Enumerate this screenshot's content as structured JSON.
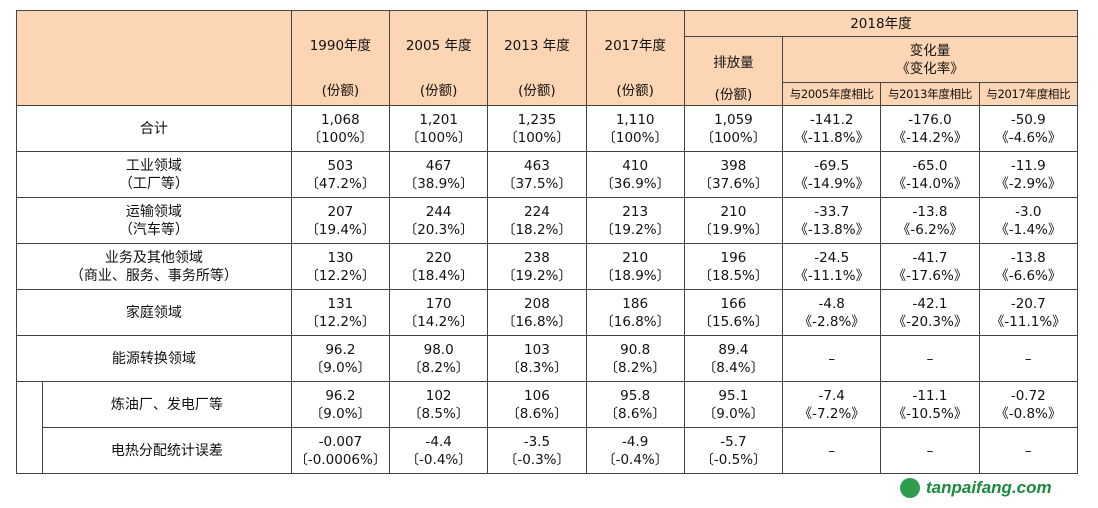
{
  "header": {
    "year_1990": "1990年度",
    "year_2005": "2005 年度",
    "year_2013": "2013 年度",
    "year_2017": "2017年度",
    "unit": "(份额)",
    "year_2018": "2018年度",
    "emissions": "排放量",
    "change_line1": "变化量",
    "change_line2": "《变化率》",
    "vs_2005": "与2005年度相比",
    "vs_2013": "与2013年度相比",
    "vs_2017": "与2017年度相比"
  },
  "rows": [
    {
      "label1": "合计",
      "label2": "",
      "v1990": "1,068",
      "p1990": "〔100%〕",
      "v2005": "1,201",
      "p2005": "〔100%〕",
      "v2013": "1,235",
      "p2013": "〔100%〕",
      "v2017": "1,110",
      "p2017": "〔100%〕",
      "v2018": "1,059",
      "p2018": "〔100%〕",
      "c2005": "-141.2",
      "r2005": "《-11.8%》",
      "c2013": "-176.0",
      "r2013": "《-14.2%》",
      "c2017": "-50.9",
      "r2017": "《-4.6%》"
    },
    {
      "label1": "工业领域",
      "label2": "（工厂等）",
      "v1990": "503",
      "p1990": "〔47.2%〕",
      "v2005": "467",
      "p2005": "〔38.9%〕",
      "v2013": "463",
      "p2013": "〔37.5%〕",
      "v2017": "410",
      "p2017": "〔36.9%〕",
      "v2018": "398",
      "p2018": "〔37.6%〕",
      "c2005": "-69.5",
      "r2005": "《-14.9%》",
      "c2013": "-65.0",
      "r2013": "《-14.0%》",
      "c2017": "-11.9",
      "r2017": "《-2.9%》"
    },
    {
      "label1": "运输领域",
      "label2": "（汽车等）",
      "v1990": "207",
      "p1990": "〔19.4%〕",
      "v2005": "244",
      "p2005": "〔20.3%〕",
      "v2013": "224",
      "p2013": "〔18.2%〕",
      "v2017": "213",
      "p2017": "〔19.2%〕",
      "v2018": "210",
      "p2018": "〔19.9%〕",
      "c2005": "-33.7",
      "r2005": "《-13.8%》",
      "c2013": "-13.8",
      "r2013": "《-6.2%》",
      "c2017": "-3.0",
      "r2017": "《-1.4%》"
    },
    {
      "label1": "业务及其他领域",
      "label2": "（商业、服务、事务所等）",
      "v1990": "130",
      "p1990": "〔12.2%〕",
      "v2005": "220",
      "p2005": "〔18.4%〕",
      "v2013": "238",
      "p2013": "〔19.2%〕",
      "v2017": "210",
      "p2017": "〔18.9%〕",
      "v2018": "196",
      "p2018": "〔18.5%〕",
      "c2005": "-24.5",
      "r2005": "《-11.1%》",
      "c2013": "-41.7",
      "r2013": "《-17.6%》",
      "c2017": "-13.8",
      "r2017": "《-6.6%》"
    },
    {
      "label1": "家庭领域",
      "label2": "",
      "v1990": "131",
      "p1990": "〔12.2%〕",
      "v2005": "170",
      "p2005": "〔14.2%〕",
      "v2013": "208",
      "p2013": "〔16.8%〕",
      "v2017": "186",
      "p2017": "〔16.8%〕",
      "v2018": "166",
      "p2018": "〔15.6%〕",
      "c2005": "-4.8",
      "r2005": "《-2.8%》",
      "c2013": "-42.1",
      "r2013": "《-20.3%》",
      "c2017": "-20.7",
      "r2017": "《-11.1%》"
    },
    {
      "label1": "能源转换领域",
      "label2": "",
      "v1990": "96.2",
      "p1990": "〔9.0%〕",
      "v2005": "98.0",
      "p2005": "〔8.2%〕",
      "v2013": "103",
      "p2013": "〔8.3%〕",
      "v2017": "90.8",
      "p2017": "〔8.2%〕",
      "v2018": "89.4",
      "p2018": "〔8.4%〕",
      "c2005": "–",
      "r2005": "",
      "c2013": "–",
      "r2013": "",
      "c2017": "–",
      "r2017": ""
    },
    {
      "label1": "炼油厂、发电厂等",
      "label2": "",
      "v1990": "96.2",
      "p1990": "〔9.0%〕",
      "v2005": "102",
      "p2005": "〔8.5%〕",
      "v2013": "106",
      "p2013": "〔8.6%〕",
      "v2017": "95.8",
      "p2017": "〔8.6%〕",
      "v2018": "95.1",
      "p2018": "〔9.0%〕",
      "c2005": "-7.4",
      "r2005": "《-7.2%》",
      "c2013": "-11.1",
      "r2013": "《-10.5%》",
      "c2017": "-0.72",
      "r2017": "《-0.8%》"
    },
    {
      "label1": "电热分配统计误差",
      "label2": "",
      "v1990": "-0.007",
      "p1990": "〔-0.0006%〕",
      "v2005": "-4.4",
      "p2005": "〔-0.4%〕",
      "v2013": "-3.5",
      "p2013": "〔-0.3%〕",
      "v2017": "-4.9",
      "p2017": "〔-0.4%〕",
      "v2018": "-5.7",
      "p2018": "〔-0.5%〕",
      "c2005": "–",
      "r2005": "",
      "c2013": "–",
      "r2013": "",
      "c2017": "–",
      "r2017": ""
    }
  ],
  "watermark": {
    "text": "tanpaifang.com"
  },
  "colors": {
    "header_bg": "#fcd5b4",
    "watermark_green": "#1a8a3c"
  }
}
